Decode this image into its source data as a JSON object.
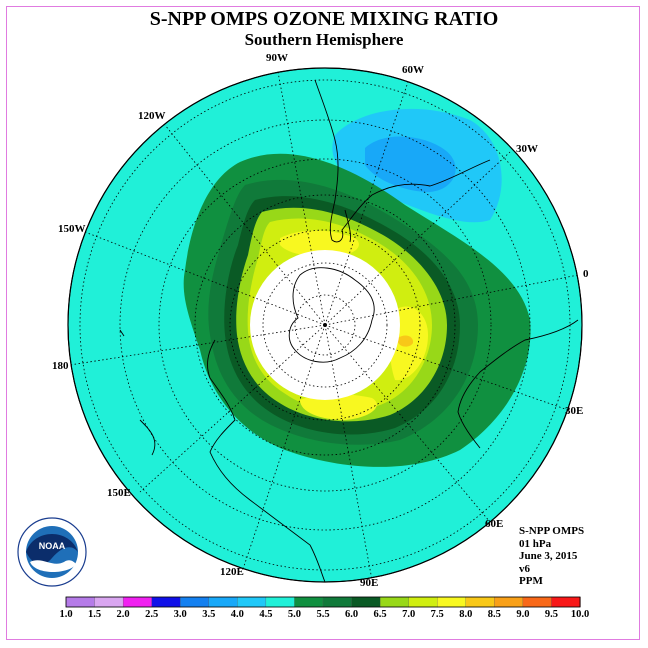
{
  "title": "S-NPP OMPS OZONE MIXING RATIO",
  "subtitle": "Southern Hemisphere",
  "longitude_labels": {
    "w90": "90W",
    "w60": "60W",
    "w120": "120W",
    "w30": "30W",
    "w150": "150W",
    "e0": "0",
    "e180": "180",
    "e30": "30E",
    "e150": "150E",
    "e60": "60E",
    "e120": "120E",
    "e90": "90E"
  },
  "info": {
    "instrument": "S-NPP OMPS",
    "level": "01 hPa",
    "date": "June 3, 2015",
    "version": "v6",
    "units": "PPM"
  },
  "logo_text": "NOAA",
  "colorbar": {
    "ticks": [
      "1.0",
      "1.5",
      "2.0",
      "2.5",
      "3.0",
      "3.5",
      "4.0",
      "4.5",
      "5.0",
      "5.5",
      "6.0",
      "6.5",
      "7.0",
      "7.5",
      "8.0",
      "8.5",
      "9.0",
      "9.5",
      "10.0"
    ],
    "colors": [
      "#b57be8",
      "#d9a6f0",
      "#f020f0",
      "#1010e8",
      "#1480f0",
      "#18a8f8",
      "#20c8f8",
      "#20f0d8",
      "#109040",
      "#107a3a",
      "#0a5a25",
      "#98d818",
      "#d0ee10",
      "#f8f820",
      "#f8c818",
      "#f8a018",
      "#f86818",
      "#f81818",
      "#a00808",
      "#886040"
    ]
  },
  "colors": {
    "background_ozone": "#20f0d8",
    "frame": "#e07be0"
  }
}
